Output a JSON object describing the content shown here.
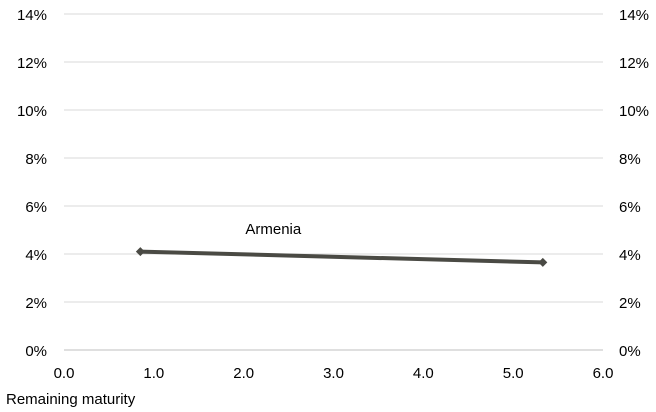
{
  "chart_data": {
    "type": "line",
    "title": "",
    "xlabel": "Remaining maturity",
    "ylabel": "",
    "xlim": [
      0,
      6
    ],
    "ylim": [
      0,
      14
    ],
    "x_ticks": [
      "0.0",
      "1.0",
      "2.0",
      "3.0",
      "4.0",
      "5.0",
      "6.0"
    ],
    "y_ticks": [
      "0%",
      "2%",
      "4%",
      "6%",
      "8%",
      "10%",
      "12%",
      "14%"
    ],
    "y_ticks_right": [
      "0%",
      "2%",
      "4%",
      "6%",
      "8%",
      "10%",
      "12%",
      "14%"
    ],
    "grid": true,
    "legend": "none",
    "series": [
      {
        "name": "Armenia",
        "color": "#4a4a44",
        "points": [
          {
            "x": 0.85,
            "y": 4.1
          },
          {
            "x": 5.33,
            "y": 3.65
          }
        ]
      }
    ],
    "annotations": [
      {
        "text": "Armenia",
        "x": 2.33,
        "y": 5.05
      }
    ]
  }
}
